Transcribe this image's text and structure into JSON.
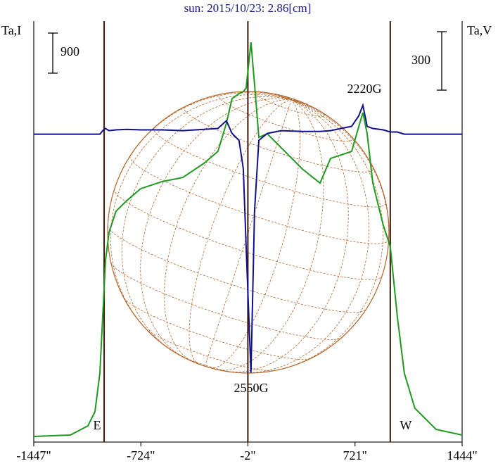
{
  "chart_data": {
    "type": "line",
    "title": "sun: 2015/10/23: 2.86[cm]",
    "y_label": "Ta,I",
    "y2_label": "Ta,V",
    "y_scale": 900,
    "y2_scale": 300,
    "xlim": [
      -1447,
      1444
    ],
    "xticks": [
      {
        "value": -1447,
        "label": "-1447\""
      },
      {
        "value": -724,
        "label": "-724\""
      },
      {
        "value": -2,
        "label": "-2\""
      },
      {
        "value": 721,
        "label": "721\""
      },
      {
        "value": 1444,
        "label": "1444\""
      }
    ],
    "ylim": [
      0,
      9450
    ],
    "y2lim": [
      -1580,
      580
    ],
    "markers": [
      {
        "value": -972,
        "label": "E"
      },
      {
        "value": 959,
        "label": "W"
      }
    ],
    "annotations": [
      "2550G",
      "2220G"
    ],
    "x": [
      -1447,
      -1200,
      -1082,
      -1034,
      -1001,
      -977,
      -963,
      -939,
      -892,
      -820,
      -726,
      -583,
      -441,
      -299,
      -204,
      -147,
      -109,
      -62,
      -33,
      -14,
      19,
      43,
      72,
      129,
      224,
      366,
      485,
      556,
      627,
      698,
      746,
      774,
      803,
      841,
      912,
      959,
      1007,
      1054,
      1125,
      1268,
      1444
    ],
    "series": [
      {
        "name": "I",
        "color": "#1f9a1f",
        "values": [
          126,
          158,
          363,
          679,
          1548,
          3128,
          4076,
          4708,
          5182,
          5419,
          5688,
          5846,
          5941,
          6257,
          6525,
          7157,
          7710,
          7821,
          7868,
          7947,
          8974,
          8026,
          6841,
          6920,
          6604,
          6130,
          5814,
          6367,
          6446,
          6525,
          7078,
          7394,
          6920,
          5814,
          4866,
          4392,
          2812,
          1548,
          758,
          284,
          158
        ]
      },
      {
        "name": "V",
        "color": "#10108c",
        "axis": "y2",
        "values": [
          0,
          0,
          0,
          0,
          0,
          22,
          29,
          18,
          22,
          25,
          22,
          22,
          18,
          25,
          29,
          69,
          4,
          -32,
          -177,
          -574,
          -1224,
          -393,
          -32,
          4,
          18,
          14,
          14,
          18,
          29,
          40,
          94,
          148,
          40,
          29,
          22,
          11,
          11,
          0,
          0,
          0,
          0
        ]
      }
    ]
  }
}
